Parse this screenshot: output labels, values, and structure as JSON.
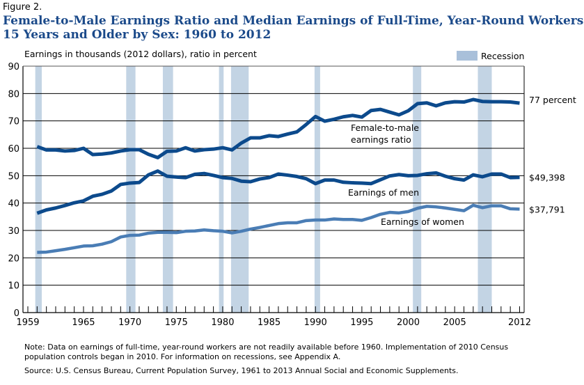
{
  "figure_label": "Figure 2.",
  "chart_data": {
    "type": "line",
    "title": [
      "Female-to-Male Earnings Ratio and Median Earnings of Full-Time, Year-Round Workers",
      "15 Years and Older by Sex: 1960 to 2012"
    ],
    "ylabel": "Earnings in thousands (2012 dollars), ratio in percent",
    "xlabel": "",
    "xlim": [
      1959,
      2012
    ],
    "ylim": [
      0,
      90
    ],
    "yticks": [
      "0",
      "10",
      "20",
      "30",
      "40",
      "50",
      "60",
      "70",
      "80",
      "90"
    ],
    "xticks": [
      {
        "v": 1959,
        "label": "1959"
      },
      {
        "v": 1965,
        "label": "1965"
      },
      {
        "v": 1970,
        "label": "1970"
      },
      {
        "v": 1975,
        "label": "1975"
      },
      {
        "v": 1980,
        "label": "1980"
      },
      {
        "v": 1985,
        "label": "1985"
      },
      {
        "v": 1990,
        "label": "1990"
      },
      {
        "v": 1995,
        "label": "1995"
      },
      {
        "v": 2000,
        "label": "2000"
      },
      {
        "v": 2005,
        "label": "2005"
      },
      {
        "v": 2012,
        "label": "2012"
      }
    ],
    "grid": true,
    "legend": {
      "label": "Recession",
      "position": "top-right",
      "color": "#a9c0da"
    },
    "recessions": [
      [
        1959.8,
        1960.5
      ],
      [
        1969.6,
        1970.6
      ],
      [
        1973.55,
        1974.65
      ],
      [
        1979.6,
        1980.1
      ],
      [
        1980.9,
        1982.8
      ],
      [
        1989.9,
        1990.5
      ],
      [
        2000.5,
        2001.4
      ],
      [
        2007.5,
        2009.0
      ]
    ],
    "x_start": 1960,
    "series": [
      {
        "name": "Female-to-male earnings ratio",
        "annotation": [
          "Female-to-male",
          "earnings ratio"
        ],
        "end_label": "77 percent",
        "color": "#0c4a8c",
        "values": [
          60.6,
          59.4,
          59.4,
          59.0,
          59.2,
          60.0,
          57.7,
          57.9,
          58.3,
          59.0,
          59.5,
          59.5,
          57.8,
          56.6,
          58.9,
          59.0,
          60.2,
          59.0,
          59.5,
          59.7,
          60.2,
          59.4,
          61.9,
          63.8,
          63.8,
          64.6,
          64.3,
          65.2,
          66.0,
          68.7,
          71.6,
          69.9,
          70.6,
          71.5,
          72.0,
          71.4,
          73.8,
          74.2,
          73.2,
          72.2,
          73.7,
          76.3,
          76.6,
          75.5,
          76.6,
          77.0,
          76.9,
          77.8,
          77.1,
          77.0,
          77.0,
          76.9,
          76.5
        ]
      },
      {
        "name": "Earnings of men",
        "annotation": [
          "Earnings of men"
        ],
        "end_label": "$49,398",
        "color": "#0c4a8c",
        "values": [
          36.3,
          37.5,
          38.2,
          39.1,
          40.1,
          40.8,
          42.5,
          43.2,
          44.4,
          46.8,
          47.3,
          47.5,
          50.3,
          51.7,
          49.8,
          49.5,
          49.3,
          50.5,
          50.8,
          50.1,
          49.3,
          49.0,
          48.0,
          47.8,
          48.8,
          49.3,
          50.6,
          50.2,
          49.7,
          48.9,
          47.1,
          48.4,
          48.4,
          47.6,
          47.4,
          47.3,
          47.1,
          48.5,
          49.9,
          50.4,
          50.0,
          50.1,
          50.7,
          51.0,
          49.8,
          48.9,
          48.4,
          50.3,
          49.6,
          50.6,
          50.6,
          49.3,
          49.4
        ]
      },
      {
        "name": "Earnings of women",
        "annotation": [
          "Earnings of women"
        ],
        "end_label": "$37,791",
        "color": "#4a7db5",
        "values": [
          22.0,
          22.1,
          22.6,
          23.1,
          23.7,
          24.3,
          24.4,
          25.0,
          25.9,
          27.6,
          28.2,
          28.3,
          29.0,
          29.3,
          29.3,
          29.2,
          29.7,
          29.8,
          30.2,
          29.9,
          29.7,
          29.1,
          29.7,
          30.5,
          31.1,
          31.8,
          32.5,
          32.8,
          32.8,
          33.6,
          33.8,
          33.8,
          34.2,
          34.0,
          34.0,
          33.7,
          34.7,
          35.9,
          36.6,
          36.4,
          36.9,
          38.1,
          38.8,
          38.6,
          38.2,
          37.7,
          37.2,
          39.2,
          38.3,
          39.0,
          39.0,
          37.9,
          37.8
        ]
      }
    ]
  },
  "notes": [
    "Note: Data on earnings of full-time, year-round workers are not readily available before 1960. Implementation of 2010 Census",
    "population controls began in 2010. For information on recessions, see Appendix A.",
    "Source: U.S. Census Bureau, Current Population Survey, 1961 to 2013 Annual Social and Economic Supplements."
  ]
}
